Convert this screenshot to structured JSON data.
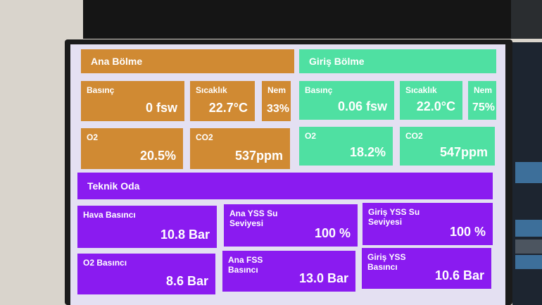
{
  "sections": [
    {
      "title": "Ana Bölme",
      "tiles": [
        {
          "label": "Basınç",
          "value": "0 fsw"
        },
        {
          "label": "Sıcaklık",
          "value": "22.7°C"
        },
        {
          "label": "Nem",
          "value": "33%"
        },
        {
          "label": "O2",
          "value": "20.5%"
        },
        {
          "label": "CO2",
          "value": "537ppm"
        }
      ]
    },
    {
      "title": "Giriş Bölme",
      "tiles": [
        {
          "label": "Basınç",
          "value": "0.06 fsw"
        },
        {
          "label": "Sıcaklık",
          "value": "22.0°C"
        },
        {
          "label": "Nem",
          "value": "75%"
        },
        {
          "label": "O2",
          "value": "18.2%"
        },
        {
          "label": "CO2",
          "value": "547ppm"
        }
      ]
    },
    {
      "title": "Teknik Oda",
      "tiles": [
        {
          "label": "Hava Basıncı",
          "value": "10.8 Bar"
        },
        {
          "label": "Ana YSS Su Seviyesi",
          "value": "100 %"
        },
        {
          "label": "Giriş YSS Su Seviyesi",
          "value": "100 %"
        },
        {
          "label": "O2 Basıncı",
          "value": "8.6 Bar"
        },
        {
          "label": "Ana FSS Basıncı",
          "value": "13.0 Bar"
        },
        {
          "label": "Giriş YSS Basıncı",
          "value": "10.6 Bar"
        }
      ]
    }
  ]
}
